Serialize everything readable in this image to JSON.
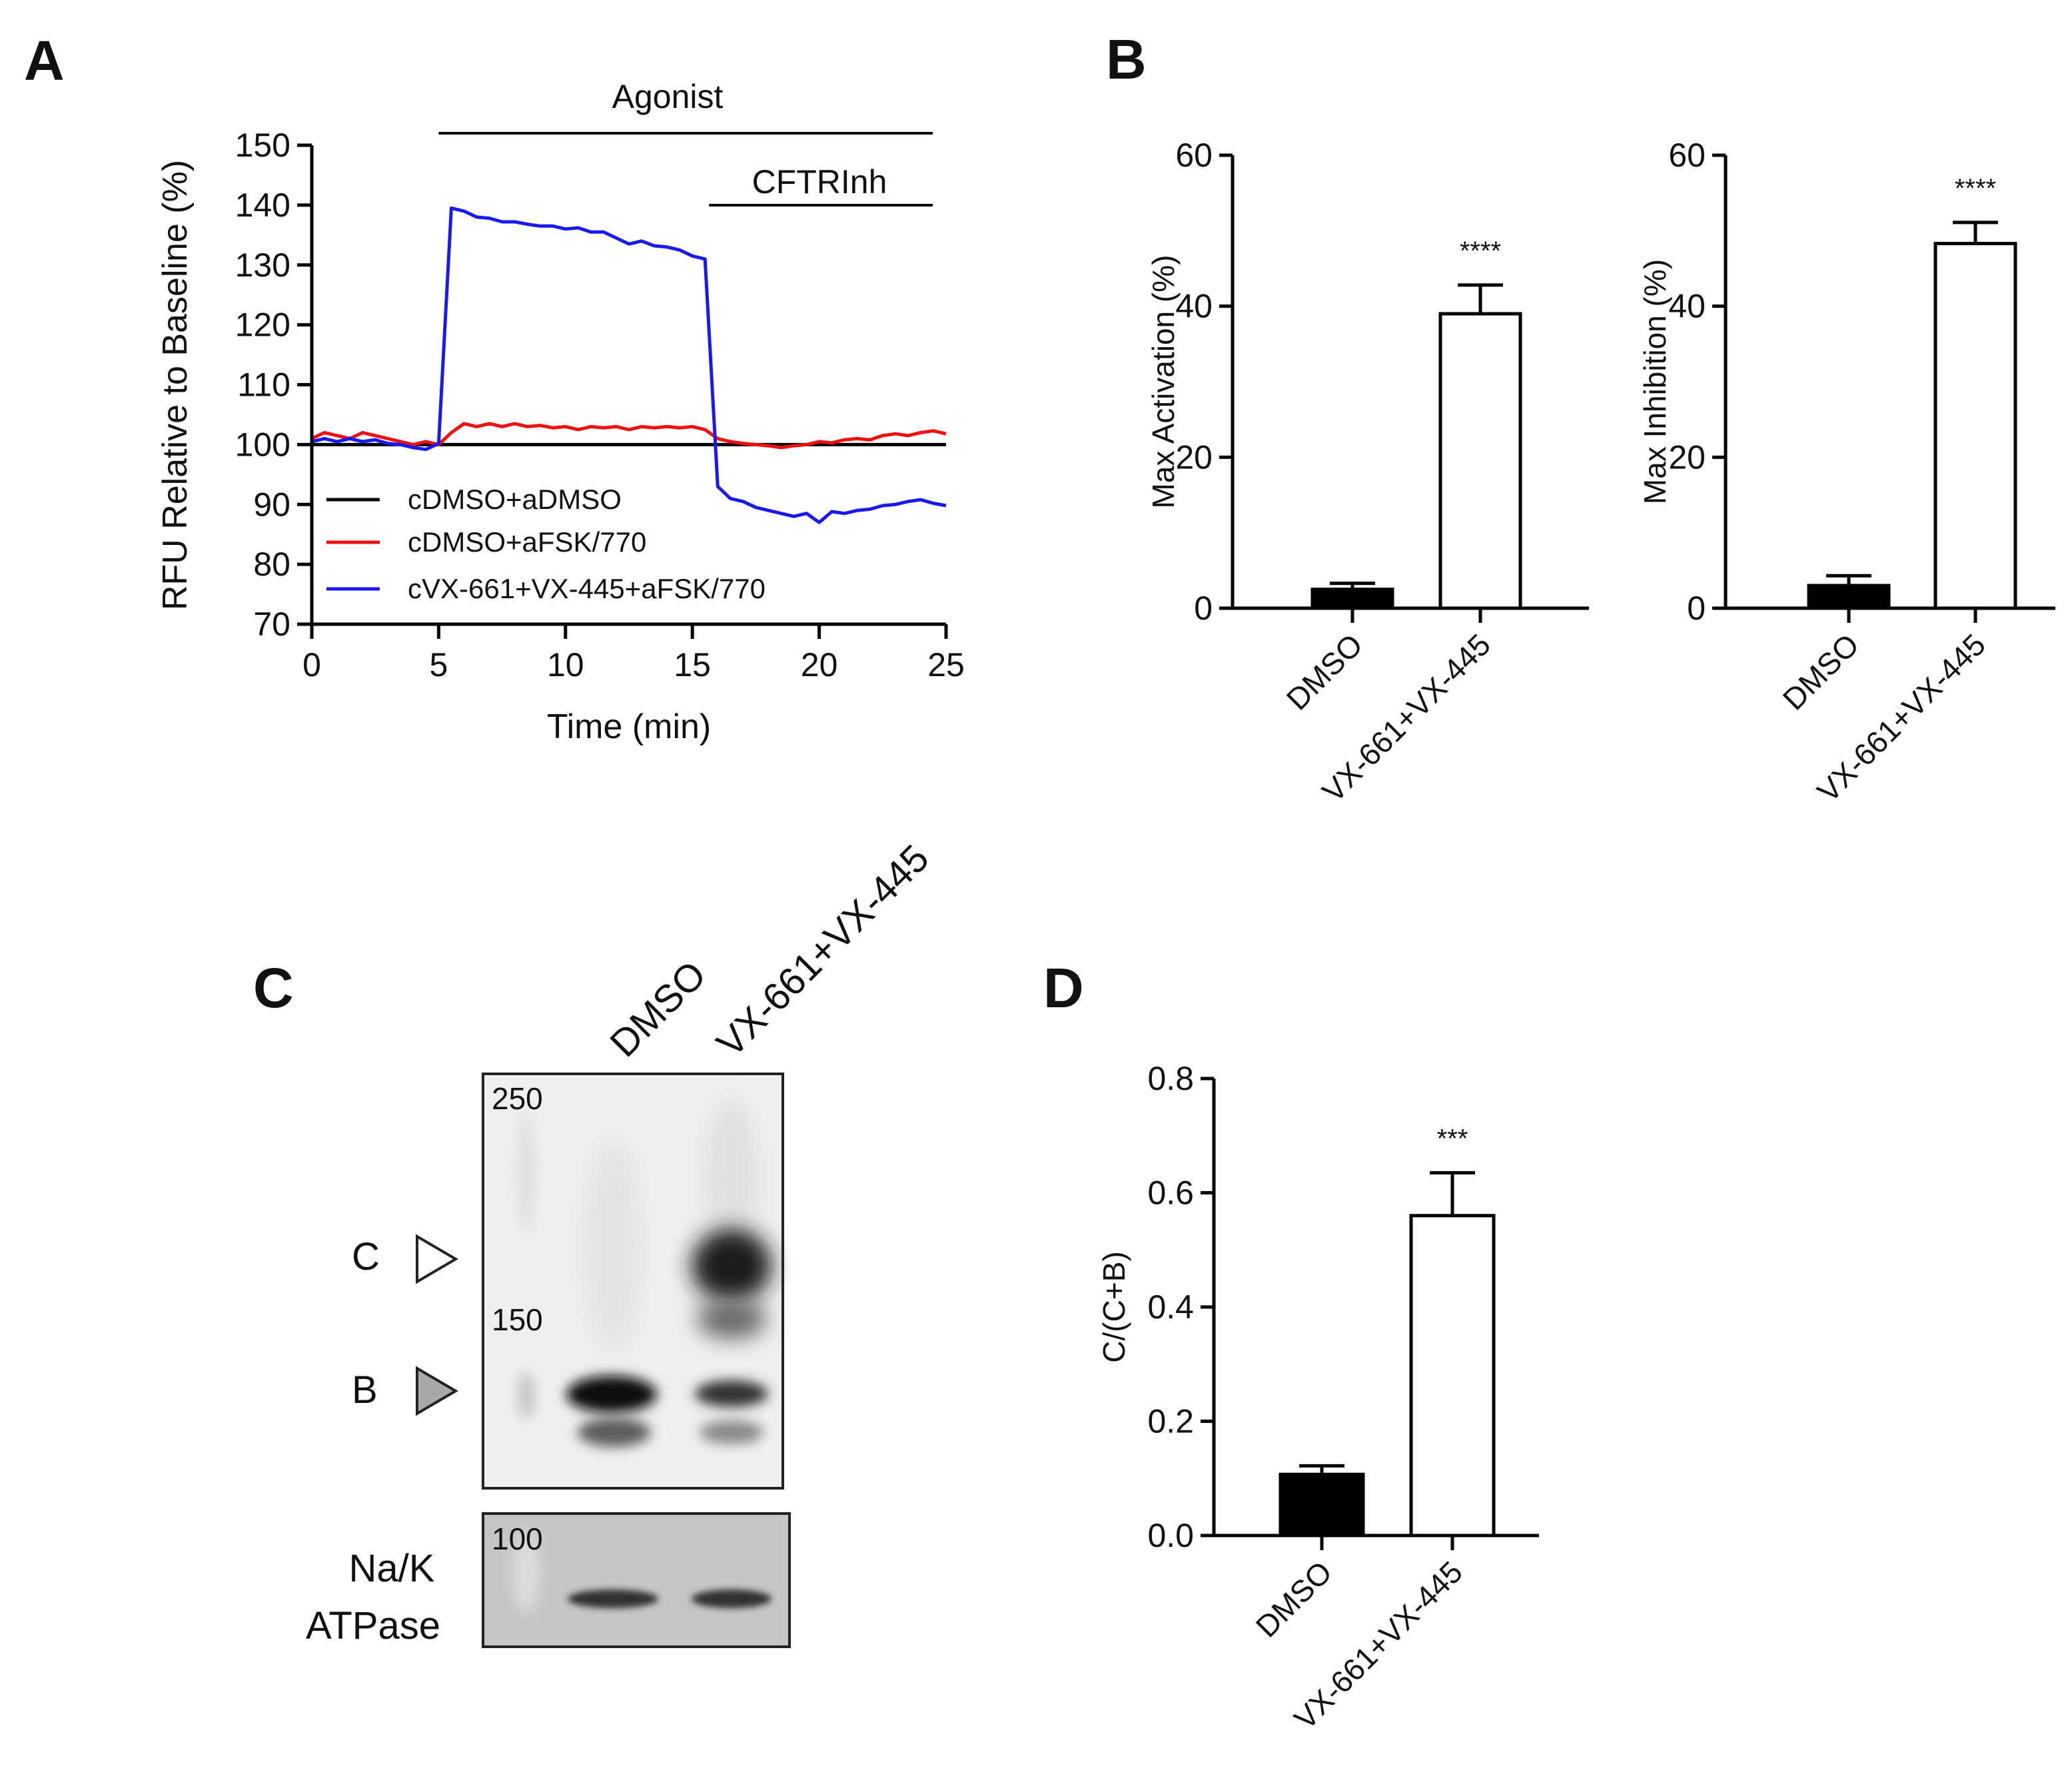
{
  "panels": {
    "a": "A",
    "b": "B",
    "c": "C",
    "d": "D"
  },
  "colors": {
    "black": "#000000",
    "red": "#ee1111",
    "blue": "#1a1aee",
    "dmso_bar": "#000000",
    "treated_bar": "#ffffff"
  },
  "chart_data": [
    {
      "id": "A",
      "type": "line",
      "xlabel": "Time (min)",
      "ylabel": "RFU Relative to Baseline (%)",
      "xlim": [
        0,
        25
      ],
      "ylim": [
        70,
        150
      ],
      "xticks": [
        0,
        5,
        10,
        15,
        20,
        25
      ],
      "yticks": [
        70,
        80,
        90,
        100,
        110,
        120,
        130,
        140,
        150
      ],
      "annotations": [
        {
          "text": "Agonist",
          "x_start": 5,
          "x_end": 25
        },
        {
          "text": "CFTRInh",
          "x_start": 15.5,
          "x_end": 25
        }
      ],
      "series": [
        {
          "name": "cDMSO+aDMSO",
          "color": "#000000",
          "x": [
            0,
            25
          ],
          "y": [
            100,
            100
          ]
        },
        {
          "name": "cDMSO+aFSK/770",
          "color": "#ee1111",
          "x": [
            0,
            0.5,
            1,
            1.5,
            2,
            2.5,
            3,
            3.5,
            4,
            4.5,
            5,
            5.5,
            6,
            6.5,
            7,
            7.5,
            8,
            8.5,
            9,
            9.5,
            10,
            10.5,
            11,
            11.5,
            12,
            12.5,
            13,
            13.5,
            14,
            14.5,
            15,
            15.5,
            16,
            16.5,
            17,
            17.5,
            18,
            18.5,
            19,
            19.5,
            20,
            20.5,
            21,
            21.5,
            22,
            22.5,
            23,
            23.5,
            24,
            24.5,
            25
          ],
          "y": [
            101,
            102,
            101.5,
            101,
            102,
            101.5,
            101,
            100.5,
            100,
            100.5,
            100,
            102,
            103.5,
            103,
            103.5,
            103,
            103.5,
            103,
            103.2,
            102.8,
            103,
            102.5,
            103,
            102.8,
            103,
            102.5,
            103,
            102.8,
            103,
            102.8,
            103,
            102.5,
            101,
            100.5,
            100.2,
            100,
            99.8,
            99.5,
            99.8,
            100,
            100.5,
            100.3,
            100.8,
            101,
            100.8,
            101.5,
            101.8,
            101.5,
            102,
            102.3,
            101.8
          ]
        },
        {
          "name": "cVX-661+VX-445+aFSK/770",
          "color": "#1a1aee",
          "x": [
            0,
            0.5,
            1,
            1.5,
            2,
            2.5,
            3,
            3.5,
            4,
            4.5,
            5,
            5.5,
            6,
            6.5,
            7,
            7.5,
            8,
            8.5,
            9,
            9.5,
            10,
            10.5,
            11,
            11.5,
            12,
            12.5,
            13,
            13.5,
            14,
            14.5,
            15,
            15.5,
            16,
            16.5,
            17,
            17.5,
            18,
            18.5,
            19,
            19.5,
            20,
            20.5,
            21,
            21.5,
            22,
            22.5,
            23,
            23.5,
            24,
            24.5,
            25
          ],
          "y": [
            100.5,
            101,
            100.5,
            101,
            100.5,
            100.8,
            100.2,
            100,
            99.5,
            99.2,
            100.2,
            139.5,
            139,
            138,
            137.8,
            137.2,
            137.2,
            136.8,
            136.5,
            136.5,
            136,
            136.2,
            135.5,
            135.5,
            134.5,
            133.5,
            134,
            133.2,
            133,
            132.5,
            131.5,
            131,
            93,
            91,
            90.5,
            89.5,
            89,
            88.5,
            88,
            88.5,
            87,
            88.8,
            88.5,
            89,
            89.2,
            89.8,
            90,
            90.5,
            90.8,
            90.2,
            89.8
          ]
        }
      ]
    },
    {
      "id": "B1",
      "type": "bar",
      "categories": [
        "DMSO",
        "VX-661+VX-445"
      ],
      "values": [
        2.5,
        39
      ],
      "errors": [
        0.8,
        3.8
      ],
      "significance": [
        "",
        "****"
      ],
      "ylabel": "Max Activation (%)",
      "ylim": [
        0,
        60
      ],
      "yticks": [
        0,
        20,
        40,
        60
      ]
    },
    {
      "id": "B2",
      "type": "bar",
      "categories": [
        "DMSO",
        "VX-661+VX-445"
      ],
      "values": [
        3,
        48.3
      ],
      "errors": [
        1.3,
        2.8
      ],
      "significance": [
        "",
        "****"
      ],
      "ylabel": "Max Inhibition (%)",
      "ylim": [
        0,
        60
      ],
      "yticks": [
        0,
        20,
        40,
        60
      ]
    },
    {
      "id": "D",
      "type": "bar",
      "categories": [
        "DMSO",
        "VX-661+VX-445"
      ],
      "values": [
        0.107,
        0.56
      ],
      "errors": [
        0.015,
        0.075
      ],
      "significance": [
        "",
        "***"
      ],
      "ylabel": "C/(C+B)",
      "ylim": [
        0,
        0.8
      ],
      "yticks": [
        "0.0",
        "0.2",
        "0.4",
        "0.6",
        "0.8"
      ]
    }
  ],
  "blot": {
    "lanes": [
      "DMSO",
      "VX-661+VX-445"
    ],
    "band_c": "C",
    "band_b": "B",
    "mw_markers": [
      "250",
      "150"
    ],
    "loading_mw": "100",
    "loading_label_line1": "Na/K",
    "loading_label_line2": "ATPase"
  }
}
